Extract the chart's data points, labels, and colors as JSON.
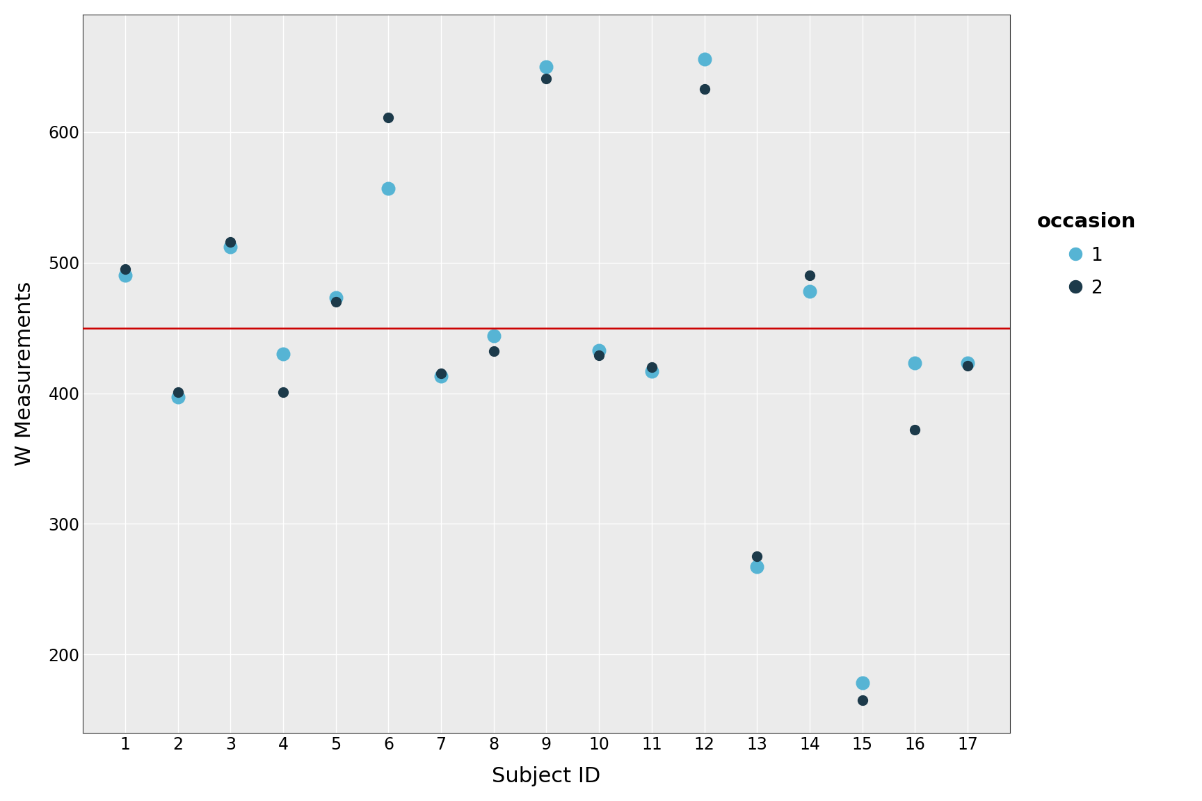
{
  "subjects": [
    1,
    2,
    3,
    4,
    5,
    6,
    7,
    8,
    9,
    10,
    11,
    12,
    13,
    14,
    15,
    16,
    17
  ],
  "occasion1": [
    490,
    397,
    512,
    430,
    473,
    557,
    413,
    444,
    650,
    433,
    417,
    656,
    267,
    478,
    178,
    423,
    423
  ],
  "occasion2": [
    495,
    401,
    516,
    401,
    470,
    611,
    415,
    432,
    641,
    429,
    420,
    633,
    275,
    490,
    165,
    372,
    421
  ],
  "color1": "#56B4D4",
  "color2": "#1C3A4A",
  "hline_y": 450,
  "hline_color": "#CC0000",
  "xlabel": "Subject ID",
  "ylabel": "W Measurements",
  "legend_title": "occasion",
  "legend_labels": [
    "1",
    "2"
  ],
  "xlim": [
    0.2,
    17.8
  ],
  "ylim": [
    140,
    690
  ],
  "yticks": [
    200,
    300,
    400,
    500,
    600
  ],
  "xticks": [
    1,
    2,
    3,
    4,
    5,
    6,
    7,
    8,
    9,
    10,
    11,
    12,
    13,
    14,
    15,
    16,
    17
  ],
  "plot_bg_color": "#EBEBEB",
  "fig_bg_color": "#FFFFFF",
  "grid_color": "#FFFFFF",
  "marker_size_1": 180,
  "marker_size_2": 100,
  "axis_label_fontsize": 22,
  "tick_fontsize": 17,
  "legend_fontsize": 19,
  "legend_title_fontsize": 21
}
